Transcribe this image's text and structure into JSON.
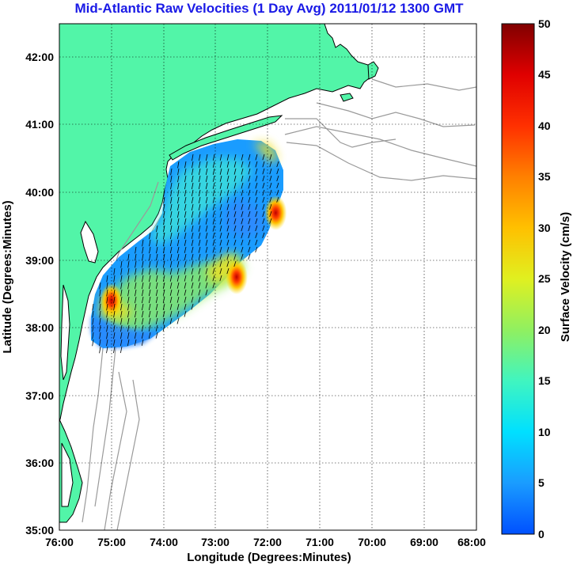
{
  "title": "Mid-Atlantic Raw Velocities (1 Day Avg) 2011/01/12 1300 GMT",
  "x_axis": {
    "label": "Longitude (Degrees:Minutes)",
    "ticks": [
      "76:00",
      "75:00",
      "74:00",
      "73:00",
      "72:00",
      "71:00",
      "70:00",
      "69:00",
      "68:00"
    ]
  },
  "y_axis": {
    "label": "Latitude (Degrees:Minutes)",
    "ticks": [
      "42:00",
      "41:00",
      "40:00",
      "39:00",
      "38:00",
      "37:00",
      "36:00",
      "35:00"
    ]
  },
  "colorbar": {
    "label": "Surface Velocity (cm/s)",
    "ticks": [
      "50",
      "45",
      "40",
      "35",
      "30",
      "25",
      "20",
      "15",
      "10",
      "5",
      "0"
    ],
    "min": 0,
    "max": 50
  },
  "colors": {
    "land": "#52f5a8",
    "title": "#1a1ae6",
    "bathymetry": "#9a9a9a",
    "coast": "#000000"
  },
  "chart_data": {
    "type": "heatmap",
    "x_range_deg_west": [
      76,
      68
    ],
    "y_range_deg_north": [
      35,
      42.5
    ],
    "value_unit": "cm/s",
    "color_range": [
      0,
      50
    ],
    "grid": true,
    "hotspots": [
      {
        "lon": -75.0,
        "lat": 38.4,
        "speed": 45
      },
      {
        "lon": -72.6,
        "lat": 38.75,
        "speed": 42
      },
      {
        "lon": -71.85,
        "lat": 39.7,
        "speed": 35
      }
    ]
  }
}
